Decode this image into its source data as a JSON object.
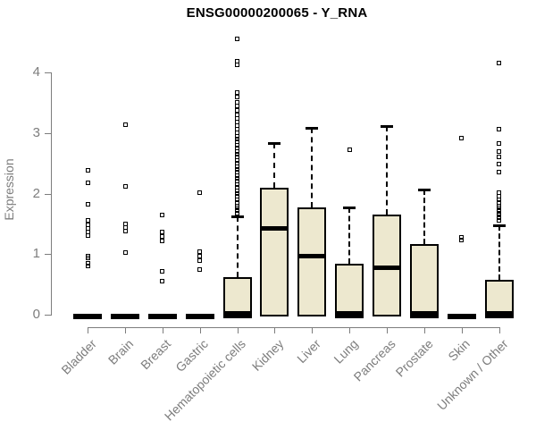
{
  "chart_data": {
    "type": "boxplot",
    "title": "ENSG00000200065 - Y_RNA",
    "ylabel": "Expression",
    "xlabel": "",
    "ylim": [
      0,
      4.6
    ],
    "yticks": [
      0,
      1,
      2,
      3,
      4
    ],
    "grid": false,
    "legend": null,
    "colors": {
      "box_fill": "#ede8cf",
      "box_border": "#000000",
      "whisker": "#000000",
      "median": "#000000",
      "outlier": "#000000",
      "axis": "#7d7d7d",
      "tick_label": "#7d7d7d",
      "title": "#000000",
      "background": "#ffffff"
    },
    "categories": [
      "Bladder",
      "Brain",
      "Breast",
      "Gastric",
      "Hematopoietic cells",
      "Kidney",
      "Liver",
      "Lung",
      "Pancreas",
      "Prostate",
      "Skin",
      "Unknown / Other"
    ],
    "boxes": [
      {
        "label": "Bladder",
        "q1": 0,
        "median": 0,
        "q3": 0,
        "whisker_low": 0,
        "whisker_high": 0,
        "outliers": [
          2.39,
          2.17,
          1.82,
          1.55,
          1.48,
          1.42,
          1.36,
          1.3,
          0.97,
          0.93,
          0.85,
          0.8
        ]
      },
      {
        "label": "Brain",
        "q1": 0,
        "median": 0,
        "q3": 0,
        "whisker_low": 0,
        "whisker_high": 0,
        "outliers": [
          3.13,
          2.12,
          1.5,
          1.44,
          1.38,
          1.03
        ]
      },
      {
        "label": "Breast",
        "q1": 0,
        "median": 0,
        "q3": 0,
        "whisker_low": 0,
        "whisker_high": 0,
        "outliers": [
          1.65,
          1.36,
          1.29,
          1.22,
          0.72,
          0.56
        ]
      },
      {
        "label": "Gastric",
        "q1": 0,
        "median": 0,
        "q3": 0,
        "whisker_low": 0,
        "whisker_high": 0,
        "outliers": [
          2.01,
          1.04,
          0.97,
          0.9,
          0.74
        ]
      },
      {
        "label": "Hematopoietic cells",
        "q1": 0,
        "median": 0.02,
        "q3": 0.62,
        "whisker_low": 0,
        "whisker_high": 1.63,
        "outliers": [
          4.56,
          4.19,
          4.12,
          3.67,
          3.6,
          3.5,
          3.44,
          3.38,
          3.3,
          3.24,
          3.18,
          3.12,
          3.06,
          3.0,
          2.95,
          2.9,
          2.85,
          2.8,
          2.75,
          2.7,
          2.65,
          2.6,
          2.55,
          2.5,
          2.45,
          2.4,
          2.35,
          2.3,
          2.25,
          2.2,
          2.15,
          2.1,
          2.05,
          2.0,
          1.95,
          1.9,
          1.85,
          1.8,
          1.76,
          1.72,
          1.68
        ]
      },
      {
        "label": "Kidney",
        "q1": 0,
        "median": 1.42,
        "q3": 2.1,
        "whisker_low": 0,
        "whisker_high": 2.84,
        "outliers": []
      },
      {
        "label": "Liver",
        "q1": 0,
        "median": 0.97,
        "q3": 1.77,
        "whisker_low": 0,
        "whisker_high": 3.08,
        "outliers": []
      },
      {
        "label": "Lung",
        "q1": 0,
        "median": 0.02,
        "q3": 0.84,
        "whisker_low": 0,
        "whisker_high": 1.77,
        "outliers": [
          2.73
        ]
      },
      {
        "label": "Pancreas",
        "q1": 0,
        "median": 0.77,
        "q3": 1.65,
        "whisker_low": 0,
        "whisker_high": 3.12,
        "outliers": []
      },
      {
        "label": "Prostate",
        "q1": 0,
        "median": 0.02,
        "q3": 1.17,
        "whisker_low": 0,
        "whisker_high": 2.07,
        "outliers": []
      },
      {
        "label": "Skin",
        "q1": 0,
        "median": 0,
        "q3": 0,
        "whisker_low": 0,
        "whisker_high": 0,
        "outliers": [
          2.92,
          1.27,
          1.23
        ]
      },
      {
        "label": "Unknown / Other",
        "q1": 0,
        "median": 0.02,
        "q3": 0.57,
        "whisker_low": 0,
        "whisker_high": 1.48,
        "outliers": [
          4.16,
          3.06,
          2.83,
          2.69,
          2.61,
          2.49,
          2.36,
          2.02,
          1.96,
          1.9,
          1.85,
          1.8,
          1.76,
          1.72,
          1.68,
          1.64,
          1.6,
          1.56
        ]
      }
    ]
  }
}
